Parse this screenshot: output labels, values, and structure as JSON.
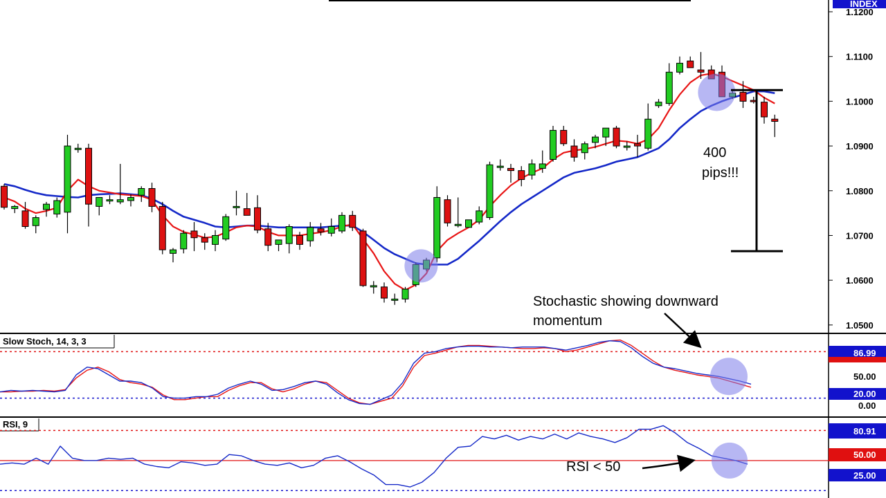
{
  "colors": {
    "bull": "#22cc22",
    "bear": "#dd1111",
    "fast_ma": "#e81414",
    "slow_ma": "#1428c8",
    "stoch_k": "#1428c8",
    "stoch_d": "#e81414",
    "rsi": "#1428c8",
    "highlight": "#7b7bea",
    "badge_blue": "#1212cc",
    "badge_red": "#e01010"
  },
  "chart_data": [
    {
      "type": "candlestick",
      "corner_label": "INDEX",
      "ylim": [
        1.0475,
        1.12
      ],
      "y_ticks": [
        "1.0500",
        "1.0600",
        "1.0700",
        "1.0800",
        "1.0900",
        "1.1000",
        "1.1100",
        "1.1200"
      ],
      "y_tick_values": [
        1.05,
        1.06,
        1.07,
        1.08,
        1.09,
        1.1,
        1.11,
        1.12
      ],
      "candles": [
        [
          1.081,
          1.0815,
          1.0758,
          1.0763
        ],
        [
          1.076,
          1.0768,
          1.075,
          1.0765
        ],
        [
          1.0755,
          1.0775,
          1.0715,
          1.072
        ],
        [
          1.0722,
          1.0745,
          1.0705,
          1.074
        ],
        [
          1.0758,
          1.0775,
          1.0742,
          1.077
        ],
        [
          1.0748,
          1.0785,
          1.074,
          1.0778
        ],
        [
          1.0752,
          1.0925,
          1.0705,
          1.09
        ],
        [
          1.0895,
          1.0905,
          1.0885,
          1.0895
        ],
        [
          1.0895,
          1.0905,
          1.072,
          1.077
        ],
        [
          1.0765,
          1.078,
          1.0745,
          1.0785
        ],
        [
          1.078,
          1.079,
          1.077,
          1.078
        ],
        [
          1.0775,
          1.086,
          1.077,
          1.078
        ],
        [
          1.0778,
          1.0792,
          1.0765,
          1.0785
        ],
        [
          1.079,
          1.081,
          1.0775,
          1.0805
        ],
        [
          1.0805,
          1.0818,
          1.0752,
          1.0765
        ],
        [
          1.0765,
          1.0775,
          1.0658,
          1.0668
        ],
        [
          1.066,
          1.0672,
          1.064,
          1.0668
        ],
        [
          1.067,
          1.0712,
          1.066,
          1.0705
        ],
        [
          1.071,
          1.073,
          1.0665,
          1.0695
        ],
        [
          1.0695,
          1.0705,
          1.0668,
          1.0685
        ],
        [
          1.068,
          1.0712,
          1.0665,
          1.07
        ],
        [
          1.0692,
          1.0748,
          1.0688,
          1.0742
        ],
        [
          1.0765,
          1.08,
          1.0745,
          1.0765
        ],
        [
          1.076,
          1.0795,
          1.0748,
          1.0745
        ],
        [
          1.0762,
          1.079,
          1.0705,
          1.0712
        ],
        [
          1.0715,
          1.0728,
          1.0665,
          1.0678
        ],
        [
          1.068,
          1.069,
          1.0665,
          1.069
        ],
        [
          1.0682,
          1.0725,
          1.066,
          1.072
        ],
        [
          1.07,
          1.0708,
          1.0668,
          1.068
        ],
        [
          1.0688,
          1.073,
          1.0675,
          1.0718
        ],
        [
          1.0715,
          1.0728,
          1.07,
          1.0708
        ],
        [
          1.0705,
          1.0738,
          1.0698,
          1.072
        ],
        [
          1.071,
          1.0752,
          1.0705,
          1.0745
        ],
        [
          1.0745,
          1.0755,
          1.071,
          1.0718
        ],
        [
          1.071,
          1.0715,
          1.0585,
          1.0588
        ],
        [
          1.0588,
          1.0598,
          1.057,
          1.0588
        ],
        [
          1.0585,
          1.0595,
          1.055,
          1.056
        ],
        [
          1.0558,
          1.057,
          1.0545,
          1.0558
        ],
        [
          1.0558,
          1.0585,
          1.055,
          1.058
        ],
        [
          1.059,
          1.064,
          1.0585,
          1.0635
        ],
        [
          1.0625,
          1.065,
          1.062,
          1.0645
        ],
        [
          1.065,
          1.081,
          1.064,
          1.0785
        ],
        [
          1.078,
          1.079,
          1.072,
          1.0728
        ],
        [
          1.0725,
          1.0785,
          1.0718,
          1.0725
        ],
        [
          1.0718,
          1.0732,
          1.0718,
          1.0735
        ],
        [
          1.073,
          1.0765,
          1.0725,
          1.0755
        ],
        [
          1.074,
          1.0865,
          1.0735,
          1.0858
        ],
        [
          1.0855,
          1.087,
          1.0845,
          1.0855
        ],
        [
          1.085,
          1.086,
          1.0818,
          1.0845
        ],
        [
          1.0845,
          1.0855,
          1.081,
          1.0825
        ],
        [
          1.0835,
          1.087,
          1.0825,
          1.086
        ],
        [
          1.085,
          1.089,
          1.084,
          1.086
        ],
        [
          1.087,
          1.0945,
          1.0865,
          1.0935
        ],
        [
          1.0935,
          1.0945,
          1.09,
          1.0905
        ],
        [
          1.09,
          1.0915,
          1.0865,
          1.0875
        ],
        [
          1.0885,
          1.091,
          1.087,
          1.0905
        ],
        [
          1.0908,
          1.0925,
          1.0895,
          1.092
        ],
        [
          1.092,
          1.0935,
          1.09,
          1.094
        ],
        [
          1.094,
          1.0945,
          1.0895,
          1.09
        ],
        [
          1.09,
          1.091,
          1.089,
          1.09
        ],
        [
          1.0905,
          1.0925,
          1.0875,
          1.09
        ],
        [
          1.0895,
          1.0995,
          1.089,
          1.096
        ],
        [
          1.099,
          1.1005,
          1.0985,
          1.0998
        ],
        [
          1.0995,
          1.1085,
          1.099,
          1.1065
        ],
        [
          1.1065,
          1.11,
          1.106,
          1.1085
        ],
        [
          1.109,
          1.11,
          1.1075,
          1.1075
        ],
        [
          1.107,
          1.111,
          1.105,
          1.1065
        ],
        [
          1.107,
          1.108,
          1.105,
          1.105
        ],
        [
          1.1065,
          1.108,
          1.101,
          1.101
        ],
        [
          1.101,
          1.1025,
          1.1005,
          1.1018
        ],
        [
          1.102,
          1.1045,
          1.0985,
          1.1
        ],
        [
          1.1002,
          1.101,
          1.0995,
          1.1
        ],
        [
          1.0998,
          1.101,
          1.095,
          1.0965
        ],
        [
          1.096,
          1.097,
          1.092,
          1.0955
        ]
      ],
      "fast_ma": [
        1.0785,
        1.0776,
        1.076,
        1.075,
        1.0755,
        1.0762,
        1.08,
        1.0825,
        1.081,
        1.08,
        1.0796,
        1.0792,
        1.079,
        1.0788,
        1.078,
        1.0745,
        1.072,
        1.0708,
        1.0702,
        1.0695,
        1.0697,
        1.0707,
        1.0718,
        1.0722,
        1.072,
        1.0708,
        1.07,
        1.07,
        1.07,
        1.0704,
        1.0707,
        1.0712,
        1.072,
        1.0725,
        1.0692,
        1.066,
        1.062,
        1.0592,
        1.0578,
        1.059,
        1.0615,
        1.0665,
        1.069,
        1.0705,
        1.0718,
        1.0735,
        1.0765,
        1.079,
        1.0812,
        1.0828,
        1.084,
        1.085,
        1.087,
        1.0885,
        1.089,
        1.0893,
        1.0898,
        1.0905,
        1.0912,
        1.091,
        1.0905,
        1.0915,
        1.094,
        1.098,
        1.1015,
        1.1042,
        1.1058,
        1.1062,
        1.1055,
        1.1045,
        1.1035,
        1.1025,
        1.1008,
        1.0995
      ],
      "slow_ma": [
        1.0815,
        1.081,
        1.0802,
        1.0795,
        1.079,
        1.0788,
        1.0786,
        1.0785,
        1.079,
        1.0792,
        1.0793,
        1.0794,
        1.0792,
        1.079,
        1.0782,
        1.077,
        1.0755,
        1.0742,
        1.0735,
        1.0728,
        1.072,
        1.0718,
        1.072,
        1.0722,
        1.0722,
        1.072,
        1.0718,
        1.0718,
        1.0718,
        1.0718,
        1.0718,
        1.072,
        1.0722,
        1.0722,
        1.0708,
        1.069,
        1.0672,
        1.0658,
        1.0648,
        1.0638,
        1.0635,
        1.0635,
        1.0635,
        1.0648,
        1.0668,
        1.0688,
        1.071,
        1.0732,
        1.0752,
        1.077,
        1.0785,
        1.08,
        1.0815,
        1.083,
        1.084,
        1.0845,
        1.085,
        1.0857,
        1.0865,
        1.087,
        1.0875,
        1.0885,
        1.0895,
        1.0915,
        1.094,
        1.096,
        1.0978,
        1.099,
        1.1,
        1.1008,
        1.1015,
        1.1022,
        1.1022,
        1.1018
      ],
      "annotations": {
        "pips_line1": "400",
        "pips_line2": "pips!!!",
        "range_top": 1.1025,
        "range_bottom": 1.0665
      }
    },
    {
      "type": "line",
      "title": "Slow Stoch, 14, 3, 3",
      "ylim": [
        0,
        100
      ],
      "levels": {
        "upper": 80,
        "lower": 20
      },
      "tick_labels": [
        "50.00",
        "0.00"
      ],
      "badges": {
        "k_value": "86.99",
        "lower_level": "20.00"
      },
      "k": [
        28,
        30,
        29,
        30,
        29,
        28,
        30,
        50,
        60,
        58,
        50,
        42,
        42,
        40,
        33,
        22,
        20,
        20,
        22,
        22,
        25,
        33,
        38,
        42,
        38,
        30,
        31,
        35,
        40,
        42,
        38,
        27,
        18,
        13,
        12,
        18,
        24,
        40,
        65,
        78,
        80,
        84,
        86,
        87,
        87,
        86,
        86,
        85,
        86,
        86,
        86,
        84,
        82,
        85,
        88,
        92,
        94,
        93,
        85,
        74,
        65,
        60,
        58,
        55,
        52,
        50,
        48,
        45,
        42,
        38
      ],
      "d": [
        28,
        28,
        29,
        29,
        30,
        29,
        31,
        46,
        56,
        60,
        54,
        44,
        40,
        38,
        34,
        24,
        18,
        18,
        20,
        22,
        22,
        30,
        36,
        40,
        40,
        32,
        28,
        32,
        38,
        42,
        40,
        30,
        20,
        14,
        12,
        16,
        20,
        36,
        60,
        75,
        78,
        82,
        86,
        88,
        88,
        87,
        86,
        85,
        84,
        84,
        85,
        84,
        80,
        82,
        86,
        90,
        94,
        95,
        88,
        78,
        68,
        60,
        56,
        53,
        50,
        48,
        46,
        42,
        38,
        34
      ]
    },
    {
      "type": "line",
      "title": "RSI, 9",
      "ylim": [
        20,
        85
      ],
      "levels": {
        "upper": 75,
        "mid": 50,
        "lower": 25
      },
      "badges": {
        "rsi_value": "80.91",
        "mid_level": "50.00",
        "lower_level": "25.00"
      },
      "rsi": [
        47,
        48,
        47,
        52,
        47,
        62,
        52,
        50,
        50,
        52,
        51,
        52,
        47,
        45,
        44,
        49,
        48,
        46,
        47,
        55,
        54,
        50,
        47,
        46,
        48,
        44,
        46,
        52,
        54,
        49,
        43,
        38,
        30,
        30,
        28,
        32,
        40,
        52,
        61,
        62,
        70,
        68,
        71,
        67,
        70,
        68,
        72,
        68,
        73,
        70,
        68,
        65,
        69,
        76,
        76,
        79,
        73,
        65,
        60,
        54,
        52,
        50,
        47
      ]
    }
  ],
  "annotations": {
    "stoch_line1": "Stochastic showing downward",
    "stoch_line2": "momentum",
    "rsi_text": "RSI < 50"
  }
}
